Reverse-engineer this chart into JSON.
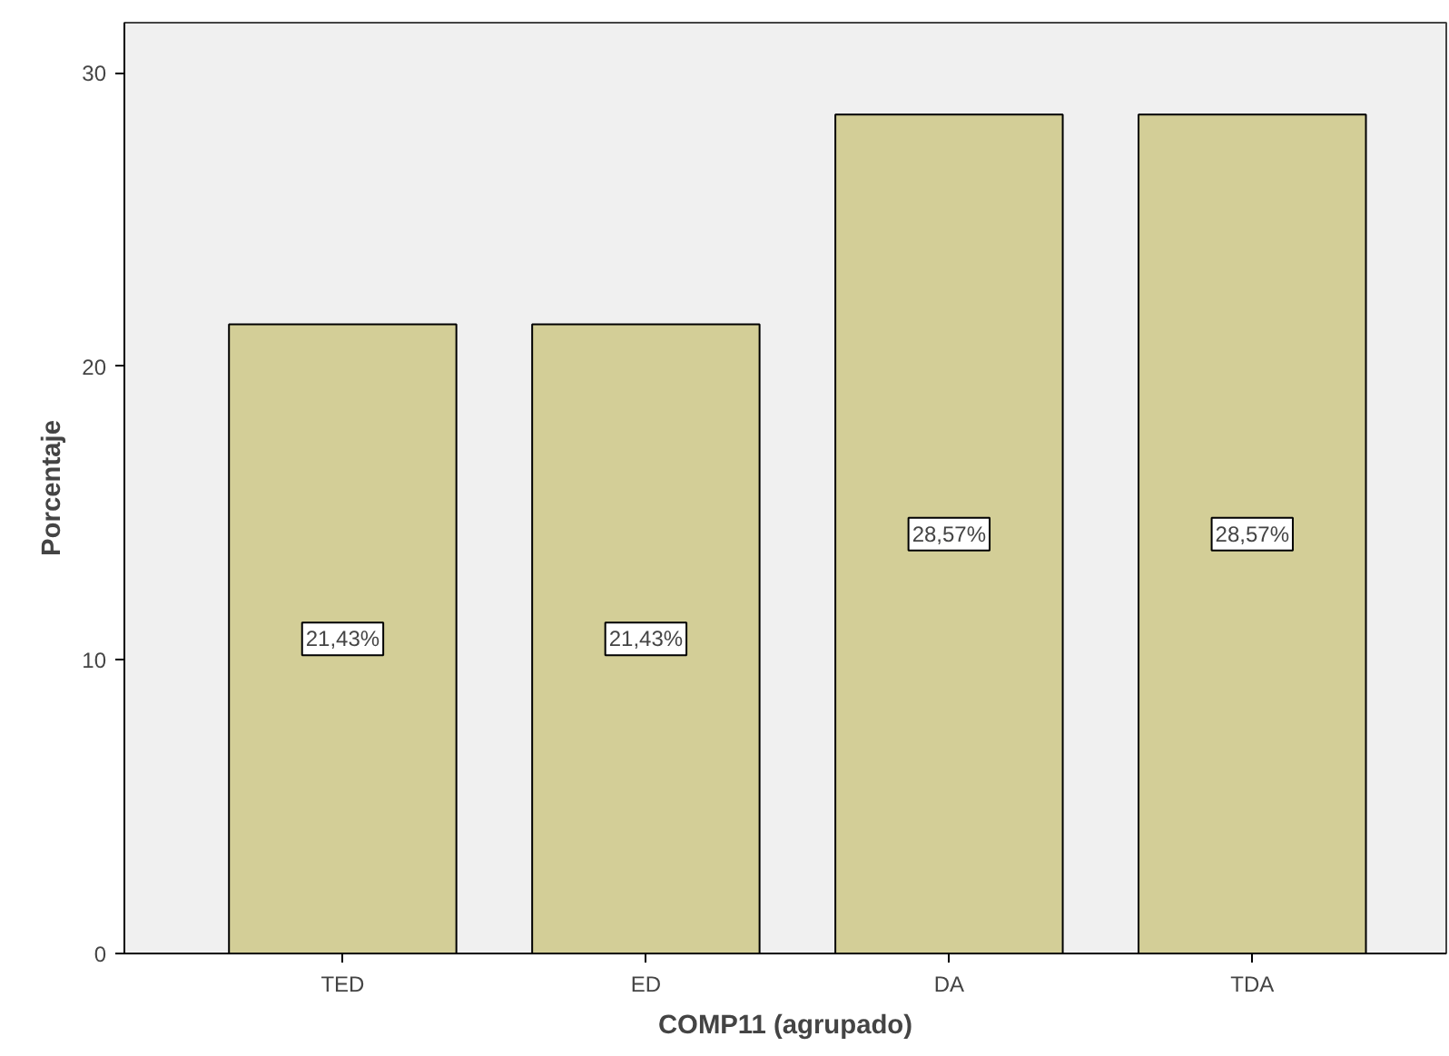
{
  "chart_data": {
    "type": "bar",
    "xlabel": "COMP11 (agrupado)",
    "ylabel": "Porcentaje",
    "categories": [
      "TED",
      "ED",
      "DA",
      "TDA"
    ],
    "values": [
      21.43,
      21.43,
      28.57,
      28.57
    ],
    "value_labels": [
      "21,43%",
      "21,43%",
      "28,57%",
      "28,57%"
    ],
    "color": "#d3ce97",
    "ylim": [
      0,
      31.7
    ],
    "yticks": [
      0,
      10,
      20,
      30
    ],
    "grid": false
  }
}
